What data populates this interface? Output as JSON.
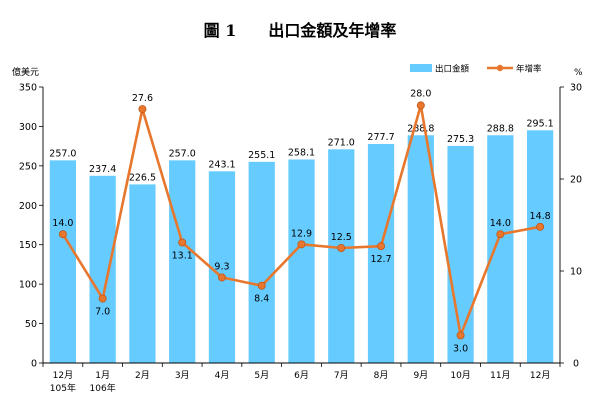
{
  "chart_data": {
    "type": "bar",
    "title": "圖 1　　出口金額及年增率",
    "left_unit": "億美元",
    "right_unit": "%",
    "categories": [
      {
        "label": "12月",
        "sub": "105年"
      },
      {
        "label": "1月",
        "sub": "106年"
      },
      {
        "label": "2月",
        "sub": ""
      },
      {
        "label": "3月",
        "sub": ""
      },
      {
        "label": "4月",
        "sub": ""
      },
      {
        "label": "5月",
        "sub": ""
      },
      {
        "label": "6月",
        "sub": ""
      },
      {
        "label": "7月",
        "sub": ""
      },
      {
        "label": "8月",
        "sub": ""
      },
      {
        "label": "9月",
        "sub": ""
      },
      {
        "label": "10月",
        "sub": ""
      },
      {
        "label": "11月",
        "sub": ""
      },
      {
        "label": "12月",
        "sub": ""
      }
    ],
    "series": [
      {
        "name": "出口金額",
        "type": "bar",
        "axis": "left",
        "color": "#66CCFF",
        "values": [
          257.0,
          237.4,
          226.5,
          257.0,
          243.1,
          255.1,
          258.1,
          271.0,
          277.7,
          288.8,
          275.3,
          288.8,
          295.1
        ],
        "labels": [
          "257.0",
          "237.4",
          "226.5",
          "257.0",
          "243.1",
          "255.1",
          "258.1",
          "271.0",
          "277.7",
          "288.8",
          "275.3",
          "288.8",
          "295.1"
        ]
      },
      {
        "name": "年增率",
        "type": "line",
        "axis": "right",
        "color": "#E8772E",
        "values": [
          14.0,
          7.0,
          27.6,
          13.1,
          9.3,
          8.4,
          12.9,
          12.5,
          12.7,
          28.0,
          3.0,
          14.0,
          14.8
        ],
        "labels": [
          "14.0",
          "7.0",
          "27.6",
          "13.1",
          "9.3",
          "8.4",
          "12.9",
          "12.5",
          "12.7",
          "28.0",
          "3.0",
          "14.0",
          "14.8"
        ]
      }
    ],
    "left_axis": {
      "min": 0,
      "max": 350,
      "ticks": [
        "0",
        "50",
        "100",
        "150",
        "200",
        "250",
        "300",
        "350"
      ]
    },
    "right_axis": {
      "min": 0,
      "max": 30,
      "ticks": [
        "0",
        "10",
        "20",
        "30"
      ]
    },
    "grid": false,
    "legend_position": "top-right"
  }
}
